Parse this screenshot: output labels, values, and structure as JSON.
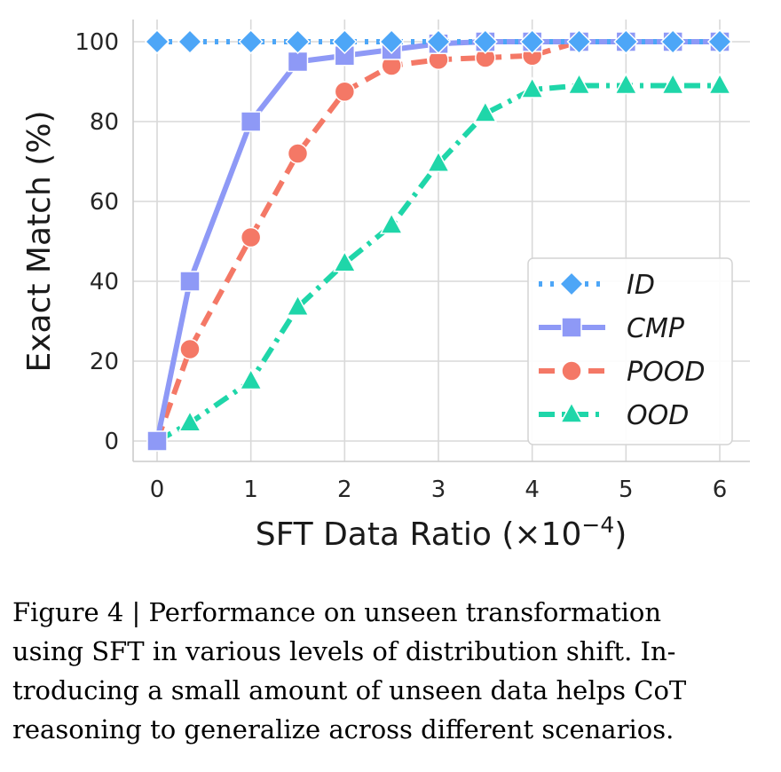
{
  "chart_data": {
    "type": "line",
    "xlabel": "SFT Data Ratio (×10⁻⁴)",
    "ylabel": "Exact Match (%)",
    "xlim": [
      0,
      6
    ],
    "ylim": [
      0,
      100
    ],
    "xticks": [
      0,
      1,
      2,
      3,
      4,
      5,
      6
    ],
    "yticks": [
      0,
      20,
      40,
      60,
      80,
      100
    ],
    "grid": true,
    "legend_position": "bottom-right",
    "series": [
      {
        "name": "ID",
        "color": "#4da6f7",
        "marker": "diamond",
        "dash": "dotted",
        "x": [
          0,
          0.35,
          1,
          1.5,
          2,
          2.5,
          3,
          3.5,
          4,
          4.5,
          5,
          5.5,
          6
        ],
        "y": [
          100,
          100,
          100,
          100,
          100,
          100,
          100,
          100,
          100,
          100,
          100,
          100,
          100
        ]
      },
      {
        "name": "CMP",
        "color": "#8e99f6",
        "marker": "square",
        "dash": "solid",
        "x": [
          0,
          0.35,
          1,
          1.5,
          2,
          2.5,
          3,
          3.5,
          4,
          4.5,
          5,
          5.5,
          6
        ],
        "y": [
          0,
          40,
          80,
          95,
          96.5,
          98,
          99.5,
          100,
          100,
          100,
          100,
          100,
          100
        ]
      },
      {
        "name": "POOD",
        "color": "#f47866",
        "marker": "circle",
        "dash": "dashed",
        "x": [
          0,
          0.35,
          1,
          1.5,
          2,
          2.5,
          3,
          3.5,
          4,
          4.5,
          5,
          5.5,
          6
        ],
        "y": [
          0,
          23,
          51,
          72,
          87.5,
          94,
          95.5,
          96,
          96.5,
          100,
          100,
          100,
          100
        ]
      },
      {
        "name": "OOD",
        "color": "#1fd6a9",
        "marker": "triangle",
        "dash": "dashdot",
        "x": [
          0,
          0.35,
          1,
          1.5,
          2,
          2.5,
          3,
          3.5,
          4,
          4.5,
          5,
          5.5,
          6
        ],
        "y": [
          0,
          4.5,
          15,
          33.5,
          44.5,
          54,
          69.5,
          82,
          88,
          89,
          89,
          89,
          89
        ]
      }
    ]
  },
  "caption": "Figure 4 | Performance on unseen transformation\nusing SFT in various levels of distribution shift. In-\ntroducing a small amount of unseen data helps CoT\nreasoning to generalize across different scenarios."
}
